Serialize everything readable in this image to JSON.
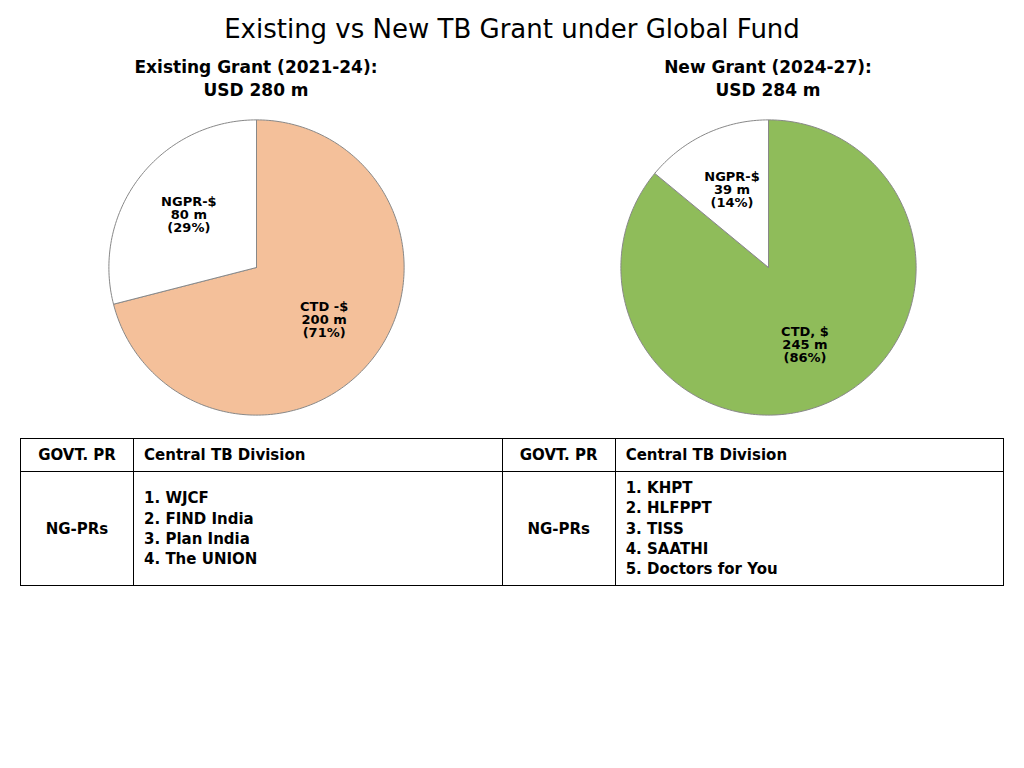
{
  "title": "Existing vs New TB Grant under Global Fund",
  "chart_data": [
    {
      "type": "pie",
      "title": "Existing Grant (2021-24):\nUSD 280 m",
      "categories": [
        "CTD -$\n200 m\n(71%)",
        "NGPR-$\n80 m\n(29%)"
      ],
      "values": [
        71,
        29
      ],
      "colors": [
        "#f4c09a",
        "#ffffff"
      ],
      "data_labels": true
    },
    {
      "type": "pie",
      "title": "New Grant (2024-27):\nUSD 284 m",
      "categories": [
        "CTD, $\n245 m\n(86%)",
        "NGPR-$\n39 m\n(14%)"
      ],
      "values": [
        86,
        14
      ],
      "colors": [
        "#8fbc5a",
        "#ffffff"
      ],
      "data_labels": true
    },
    {
      "type": "table",
      "rows": [
        [
          "GOVT. PR",
          "Central TB Division",
          "GOVT. PR",
          "Central TB Division"
        ],
        [
          "NG-PRs",
          "1.    WJCF\n2.    FIND India\n3.    Plan India\n4.    The UNION",
          "NG-PRs",
          "1.    KHPT\n2.    HLFPPT\n3.    TISS\n4.    SAATHI\n5.    Doctors for You"
        ]
      ]
    }
  ]
}
